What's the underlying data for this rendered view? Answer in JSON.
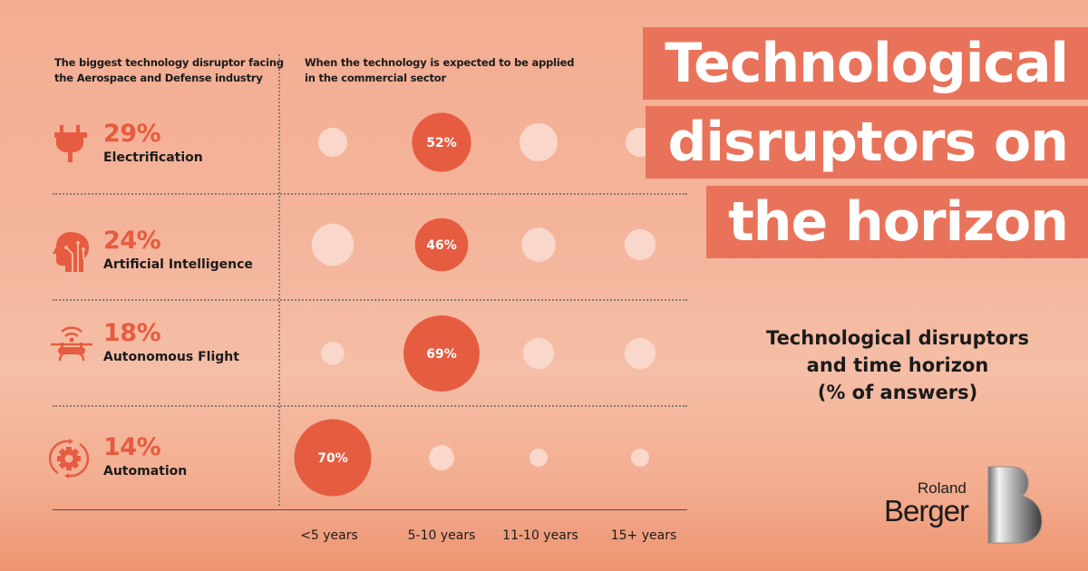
{
  "headers": {
    "left": [
      "The biggest technology disruptor facing",
      "the Aerospace and Defense industry"
    ],
    "right": [
      "When the technology is expected to be applied",
      "in the commercial sector"
    ]
  },
  "title_lines": [
    "Technological",
    "disruptors on",
    "the horizon"
  ],
  "subtitle_lines": [
    "Technological disruptors",
    "and time horizon",
    "(% of answers)"
  ],
  "logo": {
    "line1": "Roland",
    "line2": "Berger"
  },
  "colors": {
    "accent": "#e65c40",
    "bubble_light": "#f9d7ca",
    "title_box": "#e9735a"
  },
  "categories": [
    {
      "pct": "29%",
      "name": "Electrification",
      "icon": "plug-icon"
    },
    {
      "pct": "24%",
      "name": "Artificial Intelligence",
      "icon": "ai-head-icon"
    },
    {
      "pct": "18%",
      "name": "Autonomous Flight",
      "icon": "drone-icon"
    },
    {
      "pct": "14%",
      "name": "Automation",
      "icon": "gear-cycle-icon"
    }
  ],
  "chart_data": {
    "type": "bubble-grid",
    "x_categories": [
      "<5 years",
      "5-10 years",
      "11-10 years",
      "15+ years"
    ],
    "y_categories": [
      "Electrification",
      "Artificial Intelligence",
      "Autonomous Flight",
      "Automation"
    ],
    "series": [
      {
        "values": [
          22,
          52,
          31,
          22
        ],
        "highlight_index": 1,
        "highlight_label": "52%"
      },
      {
        "values": [
          35,
          46,
          27,
          24
        ],
        "highlight_index": 1,
        "highlight_label": "46%"
      },
      {
        "values": [
          16,
          69,
          24,
          24
        ],
        "highlight_index": 1,
        "highlight_label": "69%"
      },
      {
        "values": [
          70,
          18,
          11,
          11
        ],
        "highlight_index": 0,
        "highlight_label": "70%"
      }
    ],
    "note": "unlabeled bubble values estimated from bubble size"
  }
}
